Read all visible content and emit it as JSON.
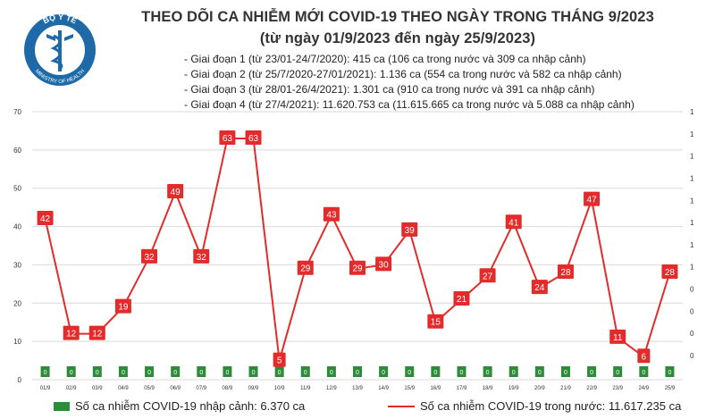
{
  "header": {
    "logo_text": "BỘ Y TẾ",
    "logo_subtext": "MINISTRY OF HEALTH",
    "title": "THEO DÕI CA NHIỄM MỚI COVID-19 THEO NGÀY TRONG THÁNG 9/2023",
    "subtitle": "(từ ngày 01/9/2023 đến ngày 25/9/2023)"
  },
  "phases": [
    "- Giai đoạn 1 (từ 23/01-24/7/2020): 415 ca (106 ca trong nước và 309 ca nhập cảnh)",
    "- Giai đoạn 2 (từ 25/7/2020-27/01/2021): 1.136 ca (554 ca trong nước và 582 ca nhập cảnh)",
    "- Giai đoạn 3 (từ 28/01-26/4/2021): 1.301 ca (910 ca trong nước và 391 ca nhập cảnh)",
    "- Giai đoạn 4 (từ 27/4/2021): 11.620.753 ca (11.615.665 ca trong nước và 5.088 ca nhập cảnh)"
  ],
  "legend": {
    "imported": "Số ca nhiễm COVID-19 nhập cảnh: 6.370 ca",
    "domestic": "Số ca nhiễm COVID-19 trong nước: 11.617.235 ca"
  },
  "colors": {
    "line": "#e32b2b",
    "bar": "#2e8b3a",
    "grid": "#d9d9d9",
    "label_text": "#ffffff"
  },
  "chart_data": {
    "type": "line",
    "categories": [
      "01/9",
      "02/9",
      "03/9",
      "04/9",
      "05/9",
      "06/9",
      "07/9",
      "08/9",
      "09/9",
      "10/9",
      "11/9",
      "12/9",
      "13/9",
      "14/9",
      "15/9",
      "16/9",
      "17/9",
      "18/9",
      "19/9",
      "20/9",
      "21/9",
      "22/9",
      "23/9",
      "24/9",
      "25/9"
    ],
    "series": [
      {
        "name": "Số ca nhiễm COVID-19 trong nước: 11.617.235 ca",
        "type": "line",
        "axis": "left",
        "values": [
          42,
          12,
          12,
          19,
          32,
          49,
          32,
          63,
          63,
          5,
          29,
          43,
          29,
          30,
          39,
          15,
          21,
          27,
          41,
          24,
          28,
          47,
          11,
          6,
          28
        ]
      },
      {
        "name": "Số ca nhiễm COVID-19 nhập cảnh: 6.370 ca",
        "type": "bar",
        "axis": "right",
        "values": [
          0,
          0,
          0,
          0,
          0,
          0,
          0,
          0,
          0,
          0,
          0,
          0,
          0,
          0,
          0,
          0,
          0,
          0,
          0,
          0,
          0,
          0,
          0,
          0,
          0
        ]
      }
    ],
    "yticks_left": [
      "0",
      "10",
      "20",
      "30",
      "40",
      "50",
      "60",
      "70"
    ],
    "ylim": [
      0,
      70
    ],
    "yticks_right": [
      "0",
      "0",
      "0",
      "0",
      "1",
      "1",
      "1",
      "1",
      "1",
      "1",
      "1",
      "1"
    ],
    "grid": true,
    "legend_position": "bottom"
  }
}
